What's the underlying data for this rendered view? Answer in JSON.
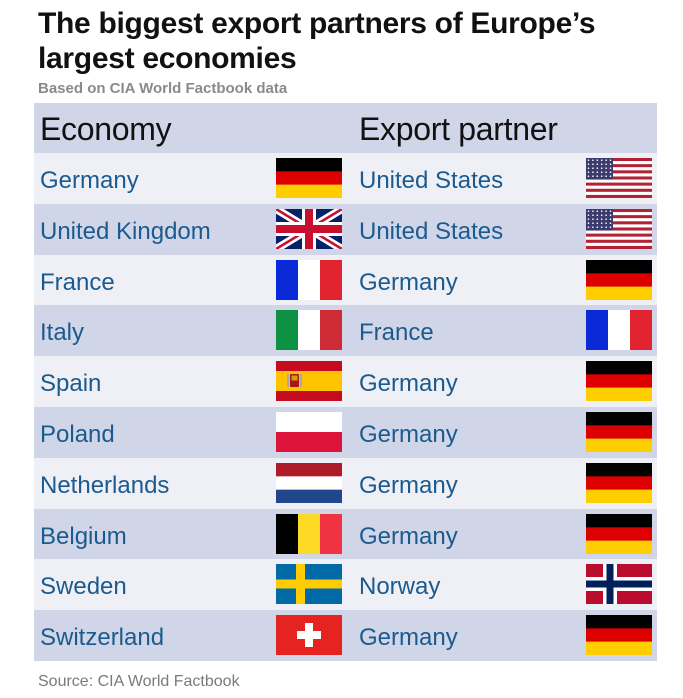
{
  "title": "The biggest export partners of Europe’s largest economies",
  "subtitle": "Based on CIA World Factbook data",
  "source": "Source: CIA World Factbook",
  "chart_data": {
    "type": "table",
    "columns": [
      "Economy",
      "Export partner"
    ],
    "rows": [
      {
        "economy": "Germany",
        "economy_flag": "germany-flag",
        "partner": "United States",
        "partner_flag": "usa-flag"
      },
      {
        "economy": "United Kingdom",
        "economy_flag": "uk-flag",
        "partner": "United States",
        "partner_flag": "usa-flag"
      },
      {
        "economy": "France",
        "economy_flag": "france-flag",
        "partner": "Germany",
        "partner_flag": "germany-flag"
      },
      {
        "economy": "Italy",
        "economy_flag": "italy-flag",
        "partner": "France",
        "partner_flag": "france-flag"
      },
      {
        "economy": "Spain",
        "economy_flag": "spain-flag",
        "partner": "Germany",
        "partner_flag": "germany-flag"
      },
      {
        "economy": "Poland",
        "economy_flag": "poland-flag",
        "partner": "Germany",
        "partner_flag": "germany-flag"
      },
      {
        "economy": "Netherlands",
        "economy_flag": "netherlands-flag",
        "partner": "Germany",
        "partner_flag": "germany-flag"
      },
      {
        "economy": "Belgium",
        "economy_flag": "belgium-flag",
        "partner": "Germany",
        "partner_flag": "germany-flag"
      },
      {
        "economy": "Sweden",
        "economy_flag": "sweden-flag",
        "partner": "Norway",
        "partner_flag": "norway-flag"
      },
      {
        "economy": "Switzerland",
        "economy_flag": "switzerland-flag",
        "partner": "Germany",
        "partner_flag": "germany-flag"
      }
    ]
  },
  "colors": {
    "header_bg": "#d0d6e8",
    "row_light": "#eef0f6",
    "row_dark": "#d0d6e8",
    "text_blue": "#1b5a8f"
  }
}
